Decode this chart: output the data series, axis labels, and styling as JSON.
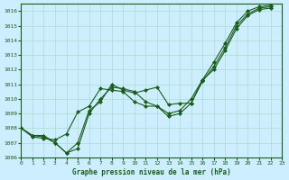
{
  "title": "Graphe pression niveau de la mer (hPa)",
  "background_color": "#cceeff",
  "grid_color": "#aaddcc",
  "line_color": "#1a5c1a",
  "xlim": [
    0,
    23
  ],
  "ylim": [
    1006,
    1016.5
  ],
  "yticks": [
    1006,
    1007,
    1008,
    1009,
    1010,
    1011,
    1012,
    1013,
    1014,
    1015,
    1016
  ],
  "xticks": [
    0,
    1,
    2,
    3,
    4,
    5,
    6,
    7,
    8,
    9,
    10,
    11,
    12,
    13,
    14,
    15,
    16,
    17,
    18,
    19,
    20,
    21,
    22,
    23
  ],
  "series": [
    {
      "x": [
        0,
        1,
        2,
        3,
        4,
        5,
        6,
        7,
        8,
        9,
        10,
        11,
        12,
        13,
        14,
        15,
        16,
        17,
        18,
        19,
        20,
        21,
        22
      ],
      "y": [
        1008.0,
        1007.5,
        1007.5,
        1007.0,
        1006.3,
        1006.6,
        1009.0,
        1010.0,
        1010.8,
        1010.7,
        1010.5,
        1009.8,
        1009.5,
        1008.8,
        1009.0,
        1009.7,
        1011.2,
        1012.2,
        1013.5,
        1015.0,
        1015.8,
        1016.2,
        1016.3
      ]
    },
    {
      "x": [
        0,
        1,
        2,
        3,
        4,
        5,
        6,
        7,
        8,
        9,
        10,
        11,
        12,
        13,
        14,
        15,
        16,
        17,
        18,
        19,
        20,
        21,
        22
      ],
      "y": [
        1008.0,
        1007.5,
        1007.4,
        1007.0,
        1006.3,
        1007.0,
        1009.2,
        1009.8,
        1011.0,
        1010.6,
        1010.4,
        1010.6,
        1010.8,
        1009.6,
        1009.7,
        1009.7,
        1011.3,
        1012.0,
        1013.3,
        1014.8,
        1015.7,
        1016.1,
        1016.2
      ]
    },
    {
      "x": [
        0,
        1,
        2,
        3,
        4,
        5,
        6,
        7,
        8,
        9,
        10,
        11,
        12,
        13,
        14,
        15,
        16,
        17,
        18,
        19,
        20,
        21,
        22
      ],
      "y": [
        1008.0,
        1007.4,
        1007.3,
        1007.2,
        1007.6,
        1009.1,
        1009.5,
        1010.7,
        1010.6,
        1010.5,
        1009.8,
        1009.5,
        1009.5,
        1009.0,
        1009.2,
        1010.0,
        1011.3,
        1012.5,
        1013.8,
        1015.2,
        1016.0,
        1016.3,
        1016.4
      ]
    }
  ]
}
